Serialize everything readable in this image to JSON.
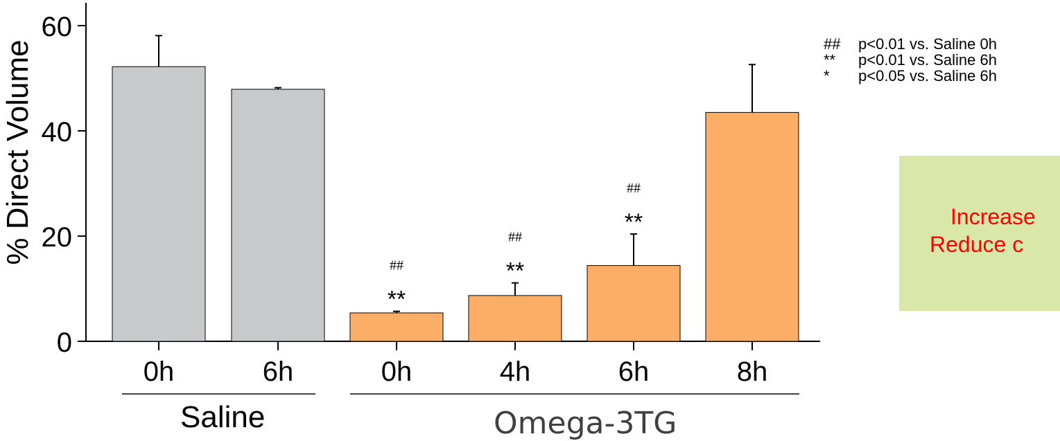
{
  "chart_data": {
    "type": "bar",
    "ylabel": "% Direct Volume",
    "ylim": [
      0,
      63
    ],
    "yticks": [
      0,
      20,
      40,
      60
    ],
    "categories": [
      "0h",
      "6h",
      "0h",
      "4h",
      "6h",
      "8h"
    ],
    "groups": [
      {
        "name": "Saline",
        "categories": [
          "0h",
          "6h"
        ],
        "color": "#c8c9cb"
      },
      {
        "name": "Omega-3TG",
        "categories": [
          "0h",
          "4h",
          "6h",
          "8h"
        ],
        "color": "#fdae66"
      }
    ],
    "values": [
      52.2,
      47.9,
      5.4,
      8.7,
      14.4,
      43.5
    ],
    "errors": [
      5.9,
      0.3,
      0.3,
      2.4,
      6.0,
      9.1
    ],
    "colors": [
      "#c8c9cb",
      "#c8c9cb",
      "#fdae66",
      "#fdae66",
      "#fdae66",
      "#fdae66"
    ],
    "significance": [
      {
        "bar": 2,
        "lines": [
          "##",
          "**"
        ]
      },
      {
        "bar": 3,
        "lines": [
          "##",
          "**"
        ]
      },
      {
        "bar": 4,
        "lines": [
          "##",
          "**"
        ]
      }
    ]
  },
  "legend": [
    {
      "symbol": "##",
      "text": "p<0.01 vs. Saline 0h"
    },
    {
      "symbol": "**",
      "text": "p<0.01 vs. Saline 6h"
    },
    {
      "symbol": "*",
      "text": "p<0.05 vs. Saline 6h"
    }
  ],
  "callout": {
    "line1": "Increase",
    "line2": "Reduce c",
    "background": "#d9e8a8",
    "text_color": "#ff0000"
  }
}
